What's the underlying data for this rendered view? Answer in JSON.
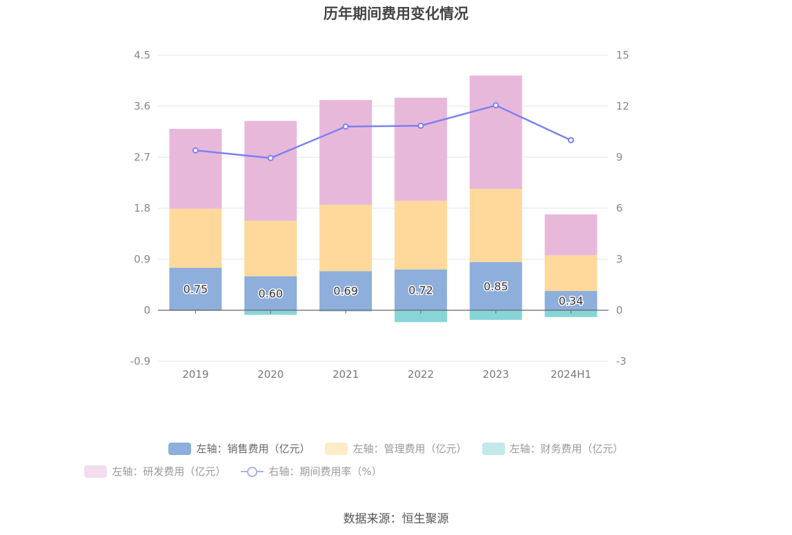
{
  "chart_data": {
    "type": "bar",
    "title": "历年期间费用变化情况",
    "stacked": true,
    "categories": [
      "2019",
      "2020",
      "2021",
      "2022",
      "2023",
      "2024H1"
    ],
    "left_axis": {
      "ylim": [
        -0.9,
        4.5
      ],
      "ticks": [
        "-0.9",
        "0",
        "0.9",
        "1.8",
        "2.7",
        "3.6",
        "4.5"
      ]
    },
    "right_axis": {
      "ylim": [
        -3,
        15
      ],
      "ticks": [
        "-3",
        "0",
        "3",
        "6",
        "9",
        "12",
        "15"
      ]
    },
    "grid": true,
    "legend_position": "bottom",
    "series": [
      {
        "name": "左轴：销售费用（亿元）",
        "axis": "left",
        "color": "#8eaedc",
        "values": [
          0.75,
          0.6,
          0.69,
          0.72,
          0.85,
          0.34
        ],
        "labels": [
          "0.75",
          "0.60",
          "0.69",
          "0.72",
          "0.85",
          "0.34"
        ]
      },
      {
        "name": "左轴：管理费用（亿元）",
        "axis": "left",
        "color": "#fed99b",
        "values": [
          1.04,
          0.98,
          1.17,
          1.21,
          1.29,
          0.63
        ]
      },
      {
        "name": "左轴：财务费用（亿元）",
        "axis": "left",
        "color": "#88d5d8",
        "values": [
          -0.01,
          -0.08,
          -0.02,
          -0.21,
          -0.17,
          -0.12
        ]
      },
      {
        "name": "左轴：研发费用（亿元）",
        "axis": "left",
        "color": "#e8b8db",
        "values": [
          1.41,
          1.76,
          1.85,
          1.82,
          2.0,
          0.72
        ]
      },
      {
        "name": "右轴：期间费用率（%）",
        "axis": "right",
        "type": "line",
        "color": "#7b80f0",
        "values": [
          9.4,
          8.95,
          10.8,
          10.85,
          12.05,
          10.0
        ]
      }
    ]
  },
  "source": "数据来源：恒生聚源"
}
